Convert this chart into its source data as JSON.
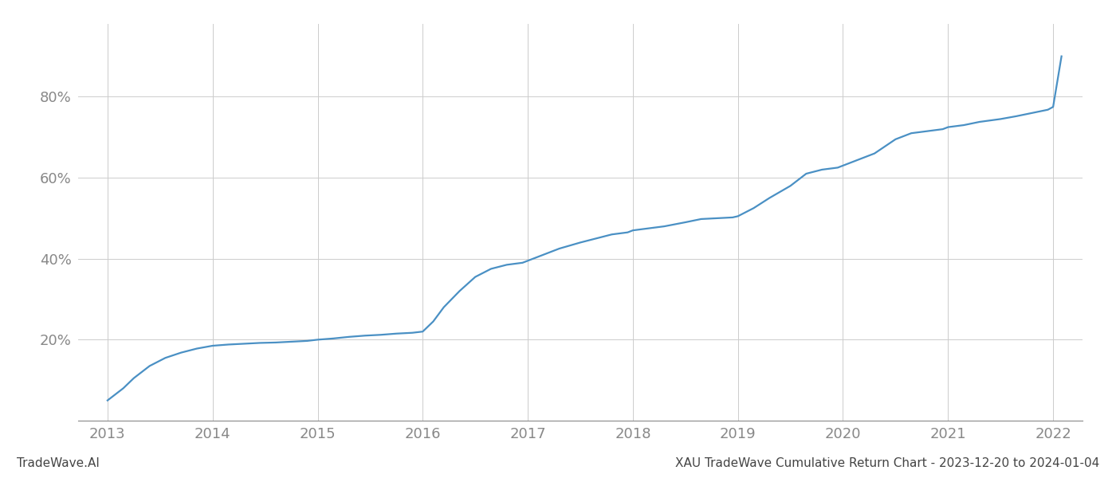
{
  "title": "",
  "xlabel": "",
  "ylabel": "",
  "footer_left": "TradeWave.AI",
  "footer_right": "XAU TradeWave Cumulative Return Chart - 2023-12-20 to 2024-01-04",
  "line_color": "#4a90c4",
  "background_color": "#ffffff",
  "grid_color": "#cccccc",
  "x_values": [
    2013.0,
    2013.05,
    2013.15,
    2013.25,
    2013.4,
    2013.55,
    2013.7,
    2013.85,
    2014.0,
    2014.15,
    2014.3,
    2014.45,
    2014.6,
    2014.75,
    2014.9,
    2015.0,
    2015.15,
    2015.3,
    2015.45,
    2015.6,
    2015.75,
    2015.9,
    2016.0,
    2016.1,
    2016.2,
    2016.35,
    2016.5,
    2016.65,
    2016.8,
    2016.95,
    2017.0,
    2017.15,
    2017.3,
    2017.5,
    2017.65,
    2017.8,
    2017.95,
    2018.0,
    2018.15,
    2018.3,
    2018.5,
    2018.65,
    2018.8,
    2018.95,
    2019.0,
    2019.15,
    2019.3,
    2019.5,
    2019.65,
    2019.8,
    2019.95,
    2020.0,
    2020.15,
    2020.3,
    2020.5,
    2020.65,
    2020.8,
    2020.95,
    2021.0,
    2021.15,
    2021.3,
    2021.5,
    2021.65,
    2021.8,
    2021.95,
    2022.0,
    2022.08
  ],
  "y_values": [
    0.05,
    0.06,
    0.08,
    0.105,
    0.135,
    0.155,
    0.168,
    0.178,
    0.185,
    0.188,
    0.19,
    0.192,
    0.193,
    0.195,
    0.197,
    0.2,
    0.203,
    0.207,
    0.21,
    0.212,
    0.215,
    0.217,
    0.22,
    0.245,
    0.28,
    0.32,
    0.355,
    0.375,
    0.385,
    0.39,
    0.395,
    0.41,
    0.425,
    0.44,
    0.45,
    0.46,
    0.465,
    0.47,
    0.475,
    0.48,
    0.49,
    0.498,
    0.5,
    0.502,
    0.505,
    0.525,
    0.55,
    0.58,
    0.61,
    0.62,
    0.625,
    0.63,
    0.645,
    0.66,
    0.695,
    0.71,
    0.715,
    0.72,
    0.725,
    0.73,
    0.738,
    0.745,
    0.752,
    0.76,
    0.768,
    0.775,
    0.9
  ],
  "yticks": [
    0.2,
    0.4,
    0.6,
    0.8
  ],
  "ytick_labels": [
    "20%",
    "40%",
    "60%",
    "80%"
  ],
  "xticks": [
    2013,
    2014,
    2015,
    2016,
    2017,
    2018,
    2019,
    2020,
    2021,
    2022
  ],
  "xlim": [
    2012.72,
    2022.28
  ],
  "ylim": [
    0.0,
    0.98
  ],
  "tick_color": "#888888",
  "axis_label_color": "#555555",
  "footer_fontsize": 11,
  "tick_fontsize": 13,
  "spine_color": "#888888"
}
